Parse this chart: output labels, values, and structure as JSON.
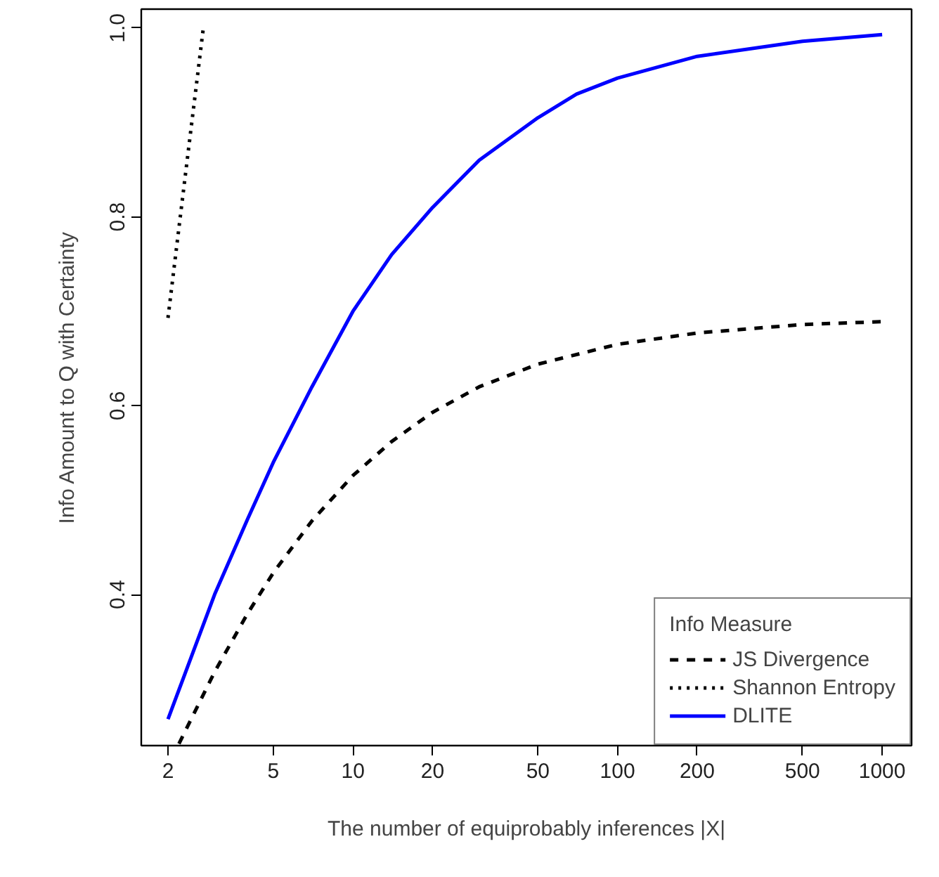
{
  "chart_data": {
    "type": "line",
    "xlabel": "The number of equiprobably inferences |X|",
    "ylabel": "Info Amount to Q with Certainty",
    "legend_title": "Info Measure",
    "log": "x",
    "xlim": [
      1.585,
      1292
    ],
    "ylim": [
      0.24,
      1.02
    ],
    "xticks": [
      2,
      5,
      10,
      20,
      50,
      100,
      200,
      500,
      1000
    ],
    "yticks": [
      0.4,
      0.6,
      0.8,
      {
        "value": 1.0,
        "label": "1.0"
      }
    ],
    "grid": false,
    "legend": "bottom right",
    "series": [
      {
        "name": "JS Divergence",
        "color": "#000000",
        "line_style": "dashed",
        "x": [
          2.2,
          3,
          4,
          5,
          7,
          10,
          14,
          20,
          30,
          50,
          100,
          200,
          500,
          1000
        ],
        "values": [
          0.242,
          0.318,
          0.38,
          0.423,
          0.478,
          0.526,
          0.562,
          0.593,
          0.62,
          0.644,
          0.665,
          0.677,
          0.686,
          0.689
        ]
      },
      {
        "name": "Shannon Entropy",
        "color": "#000000",
        "line_style": "dotted",
        "x": [
          2,
          2.3,
          2.5,
          2.72
        ],
        "values": [
          0.693,
          0.833,
          0.916,
          1.0
        ]
      },
      {
        "name": "DLITE",
        "color": "#0000ff",
        "line_style": "solid",
        "x": [
          2,
          3,
          4,
          5,
          7,
          10,
          14,
          20,
          30,
          50,
          70,
          100,
          200,
          500,
          1000
        ],
        "values": [
          0.268,
          0.4,
          0.48,
          0.54,
          0.62,
          0.7,
          0.76,
          0.81,
          0.86,
          0.905,
          0.93,
          0.947,
          0.97,
          0.986,
          0.993
        ]
      }
    ]
  }
}
